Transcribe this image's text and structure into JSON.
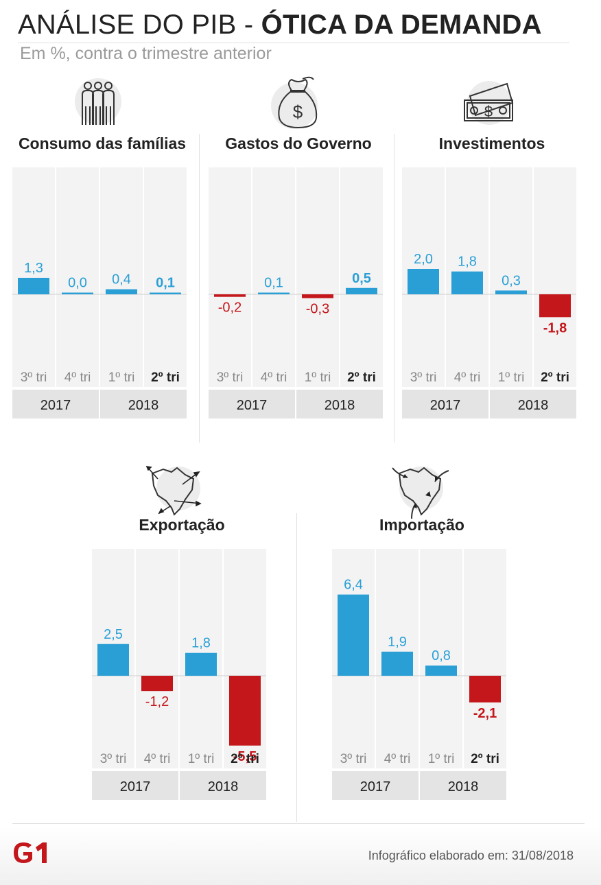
{
  "title_regular": "ANÁLISE DO PIB - ",
  "title_bold": "ÓTICA DA DEMANDA",
  "subtitle": "Em %, contra o trimestre anterior",
  "colors": {
    "positive": "#2a9fd6",
    "negative": "#c4171b",
    "column_bg": "#f3f3f3",
    "year_bg": "#e4e4e4"
  },
  "panels": [
    {
      "title": "Consumo das famílias",
      "icon": "family-icon",
      "quarters": [
        "3º tri",
        "4º tri",
        "1º tri",
        "2º tri"
      ],
      "years": [
        "2017",
        "2018"
      ],
      "values": [
        1.3,
        0.0,
        0.4,
        0.1
      ],
      "labels": [
        "1,3",
        "0,0",
        "0,4",
        "0,1"
      ]
    },
    {
      "title": "Gastos do Governo",
      "icon": "money-bag-icon",
      "quarters": [
        "3º tri",
        "4º tri",
        "1º tri",
        "2º tri"
      ],
      "years": [
        "2017",
        "2018"
      ],
      "values": [
        -0.2,
        0.1,
        -0.3,
        0.5
      ],
      "labels": [
        "-0,2",
        "0,1",
        "-0,3",
        "0,5"
      ]
    },
    {
      "title": "Investimentos",
      "icon": "banknotes-icon",
      "quarters": [
        "3º tri",
        "4º tri",
        "1º tri",
        "2º tri"
      ],
      "years": [
        "2017",
        "2018"
      ],
      "values": [
        2.0,
        1.8,
        0.3,
        -1.8
      ],
      "labels": [
        "2,0",
        "1,8",
        "0,3",
        "-1,8"
      ]
    },
    {
      "title": "Exportação",
      "icon": "export-map-icon",
      "quarters": [
        "3º tri",
        "4º tri",
        "1º tri",
        "2º tri"
      ],
      "years": [
        "2017",
        "2018"
      ],
      "values": [
        2.5,
        -1.2,
        1.8,
        -5.5
      ],
      "labels": [
        "2,5",
        "-1,2",
        "1,8",
        "-5,5"
      ]
    },
    {
      "title": "Importação",
      "icon": "import-map-icon",
      "quarters": [
        "3º tri",
        "4º tri",
        "1º tri",
        "2º tri"
      ],
      "years": [
        "2017",
        "2018"
      ],
      "values": [
        6.4,
        1.9,
        0.8,
        -2.1
      ],
      "labels": [
        "6,4",
        "1,9",
        "0,8",
        "-2,1"
      ]
    }
  ],
  "chart_data": [
    {
      "type": "bar",
      "title": "Consumo das famílias",
      "categories": [
        "3º tri 2017",
        "4º tri 2017",
        "1º tri 2018",
        "2º tri 2018"
      ],
      "values": [
        1.3,
        0.0,
        0.4,
        0.1
      ]
    },
    {
      "type": "bar",
      "title": "Gastos do Governo",
      "categories": [
        "3º tri 2017",
        "4º tri 2017",
        "1º tri 2018",
        "2º tri 2018"
      ],
      "values": [
        -0.2,
        0.1,
        -0.3,
        0.5
      ]
    },
    {
      "type": "bar",
      "title": "Investimentos",
      "categories": [
        "3º tri 2017",
        "4º tri 2017",
        "1º tri 2018",
        "2º tri 2018"
      ],
      "values": [
        2.0,
        1.8,
        0.3,
        -1.8
      ]
    },
    {
      "type": "bar",
      "title": "Exportação",
      "categories": [
        "3º tri 2017",
        "4º tri 2017",
        "1º tri 2018",
        "2º tri 2018"
      ],
      "values": [
        2.5,
        -1.2,
        1.8,
        -5.5
      ]
    },
    {
      "type": "bar",
      "title": "Importação",
      "categories": [
        "3º tri 2017",
        "4º tri 2017",
        "1º tri 2018",
        "2º tri 2018"
      ],
      "values": [
        6.4,
        1.9,
        0.8,
        -2.1
      ]
    }
  ],
  "footer": {
    "logo": "G1",
    "credit": "Infográfico elaborado em: 31/08/2018"
  }
}
